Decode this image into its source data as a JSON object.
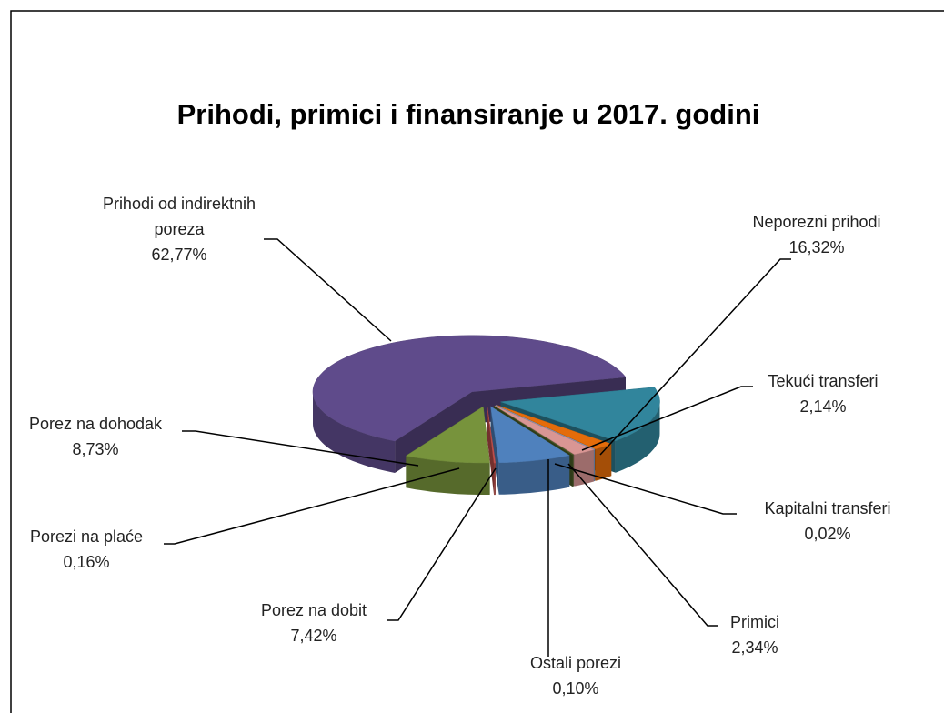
{
  "chart_data": {
    "type": "pie",
    "title": "Prihodi, primici i finansiranje u 2017. godini",
    "categories": [
      "Neporezni prihodi",
      "Tekući transferi",
      "Kapitalni transferi",
      "Primici",
      "Ostali porezi",
      "Porez na dobit",
      "Porezi na plaće",
      "Porez na dohodak",
      "Prihodi od indirektnih poreza"
    ],
    "values": [
      16.32,
      2.14,
      0.02,
      2.34,
      0.1,
      7.42,
      0.16,
      8.73,
      62.77
    ],
    "value_labels": [
      "16,32%",
      "2,14%",
      "0,02%",
      "2,34%",
      "0,10%",
      "7,42%",
      "0,16%",
      "8,73%",
      "62,77%"
    ],
    "colors": [
      "#31859c",
      "#e46c0a",
      "#8db3e2",
      "#d99694",
      "#4f6228",
      "#4f81bd",
      "#c0504d",
      "#77933c",
      "#5f4b8b"
    ]
  }
}
